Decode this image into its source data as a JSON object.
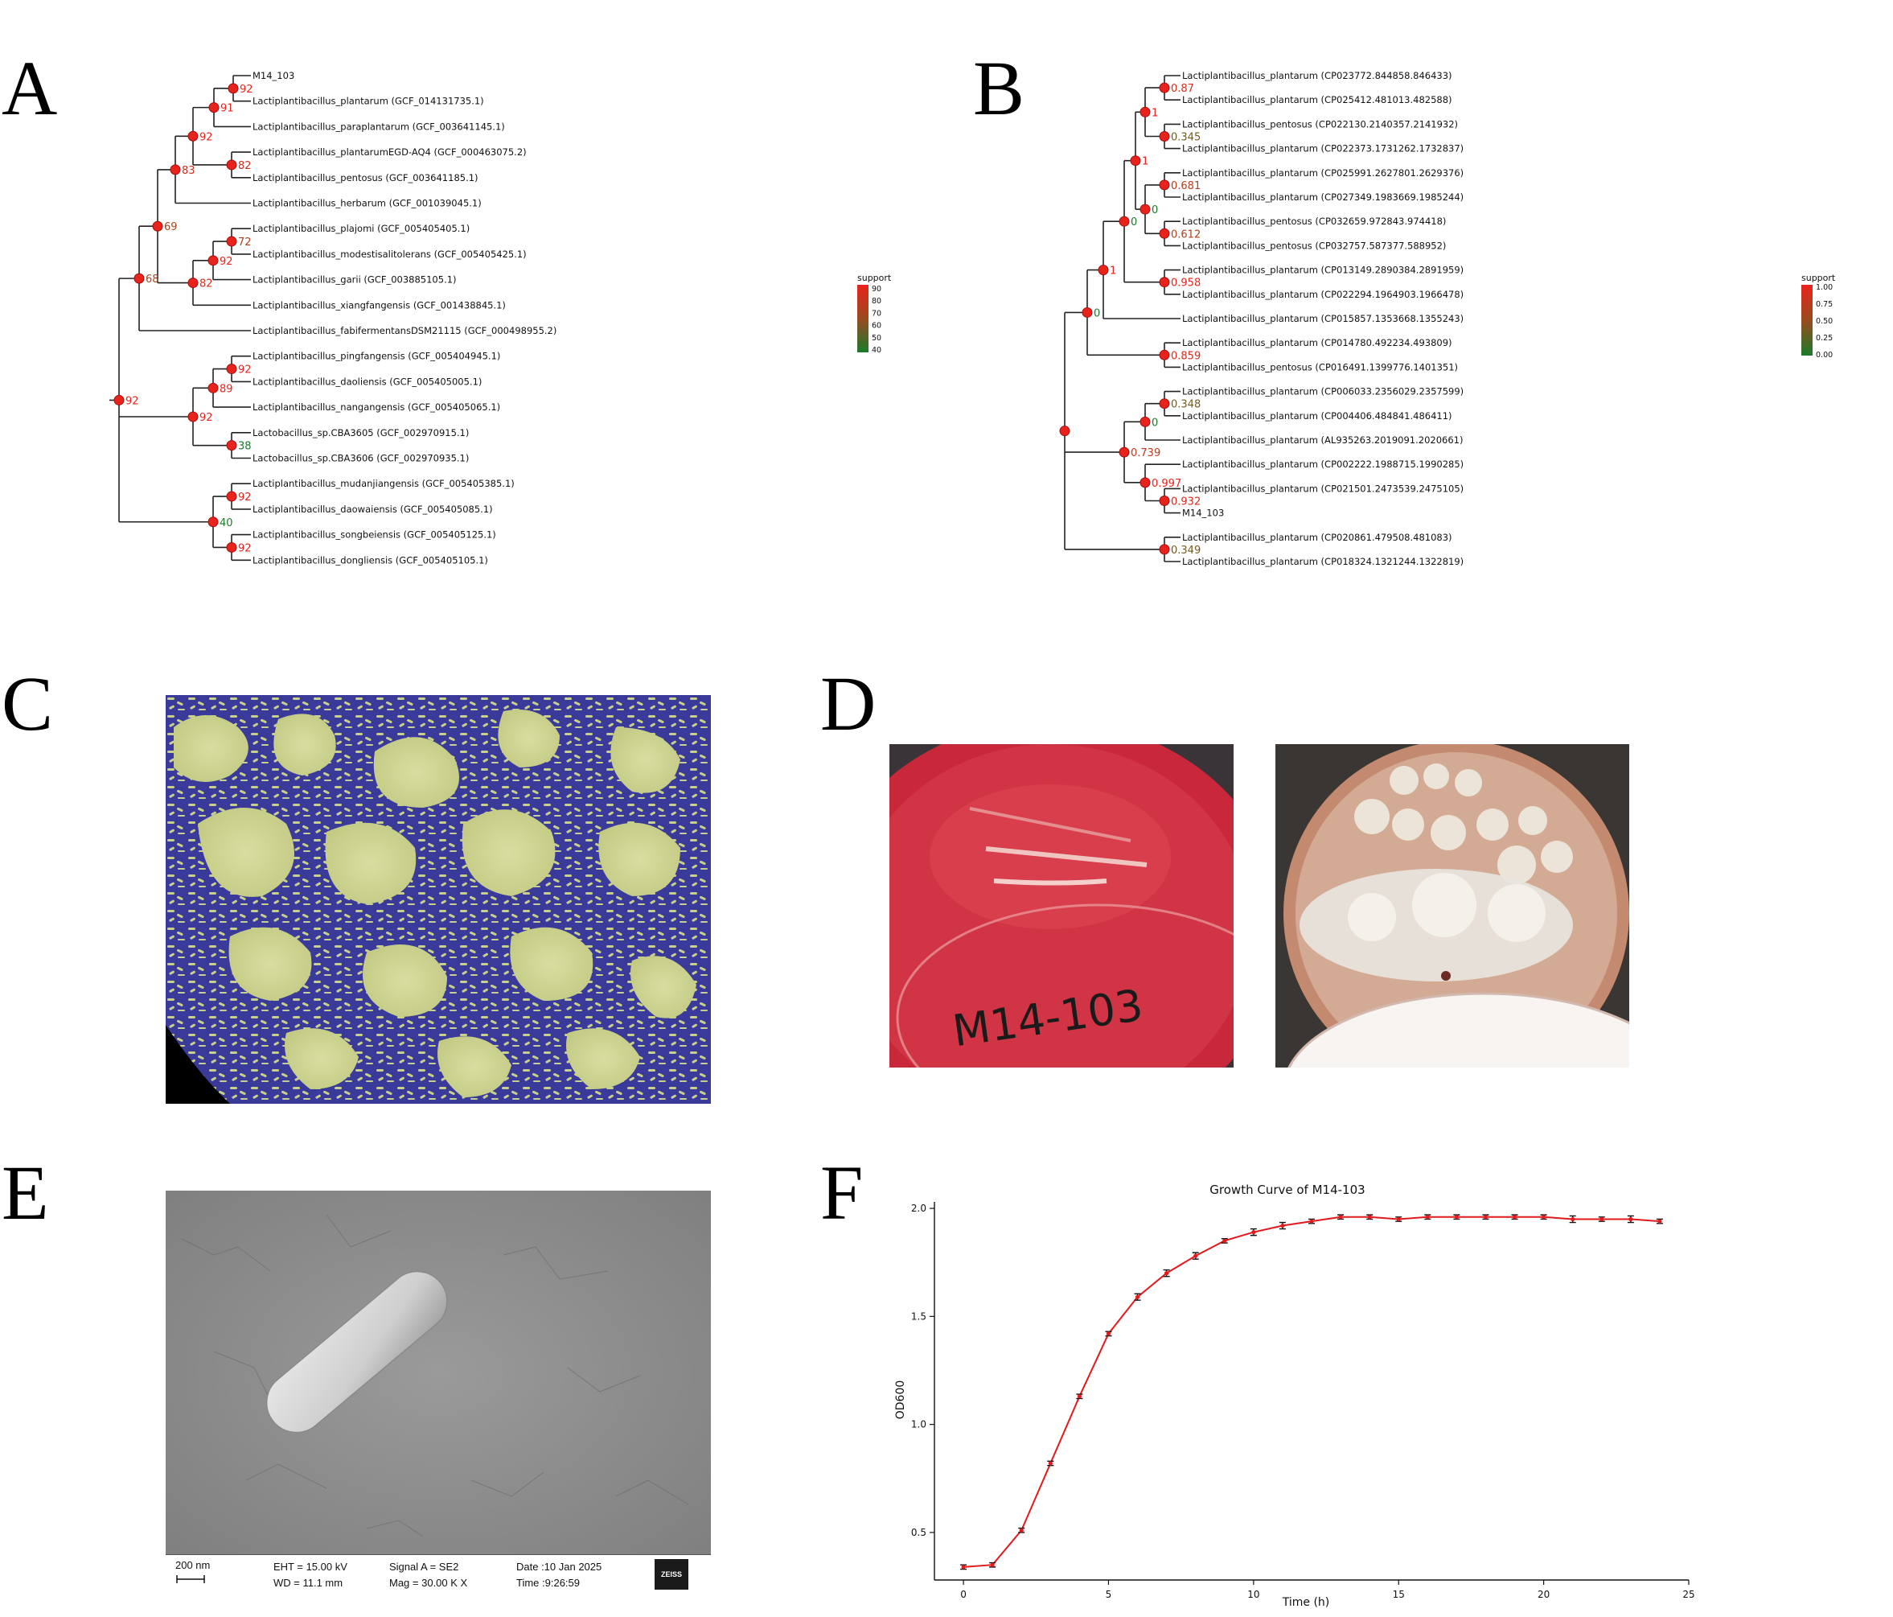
{
  "panels": {
    "a": {
      "letter": "A"
    },
    "b": {
      "letter": "B"
    },
    "c": {
      "letter": "C"
    },
    "d": {
      "letter": "D"
    },
    "e": {
      "letter": "E"
    },
    "f": {
      "letter": "F"
    }
  },
  "tree_a": {
    "tips": [
      "M14_103",
      "Lactiplantibacillus_plantarum (GCF_014131735.1)",
      "Lactiplantibacillus_paraplantarum (GCF_003641145.1)",
      "Lactiplantibacillus_plantarumEGD-AQ4 (GCF_000463075.2)",
      "Lactiplantibacillus_pentosus (GCF_003641185.1)",
      "Lactiplantibacillus_herbarum (GCF_001039045.1)",
      "Lactiplantibacillus_plajomi (GCF_005405405.1)",
      "Lactiplantibacillus_modestisalitolerans (GCF_005405425.1)",
      "Lactiplantibacillus_garii (GCF_003885105.1)",
      "Lactiplantibacillus_xiangfangensis (GCF_001438845.1)",
      "Lactiplantibacillus_fabifermentansDSM21115 (GCF_000498955.2)",
      "Lactiplantibacillus_pingfangensis (GCF_005404945.1)",
      "Lactiplantibacillus_daoliensis (GCF_005405005.1)",
      "Lactiplantibacillus_nangangensis (GCF_005405065.1)",
      "Lactobacillus_sp.CBA3605 (GCF_002970915.1)",
      "Lactobacillus_sp.CBA3606 (GCF_002970935.1)",
      "Lactiplantibacillus_mudanjiangensis (GCF_005405385.1)",
      "Lactiplantibacillus_daowaiensis (GCF_005405085.1)",
      "Lactiplantibacillus_songbeiensis (GCF_005405125.1)",
      "Lactiplantibacillus_dongliensis (GCF_005405105.1)"
    ],
    "supports": [
      "92",
      "91",
      "82",
      "92",
      "83",
      "72",
      "92",
      "82",
      "69",
      "68",
      "92",
      "89",
      "38",
      "92",
      "92",
      "92",
      "40",
      "92"
    ],
    "legend_title": "support",
    "legend_ticks": [
      "90",
      "80",
      "70",
      "60",
      "50",
      "40"
    ]
  },
  "tree_b": {
    "tips": [
      "Lactiplantibacillus_plantarum (CP023772.844858.846433)",
      "Lactiplantibacillus_plantarum (CP025412.481013.482588)",
      "Lactiplantibacillus_pentosus (CP022130.2140357.2141932)",
      "Lactiplantibacillus_plantarum (CP022373.1731262.1732837)",
      "Lactiplantibacillus_plantarum (CP025991.2627801.2629376)",
      "Lactiplantibacillus_plantarum (CP027349.1983669.1985244)",
      "Lactiplantibacillus_pentosus (CP032659.972843.974418)",
      "Lactiplantibacillus_pentosus (CP032757.587377.588952)",
      "Lactiplantibacillus_plantarum (CP013149.2890384.2891959)",
      "Lactiplantibacillus_plantarum (CP022294.1964903.1966478)",
      "Lactiplantibacillus_plantarum (CP015857.1353668.1355243)",
      "Lactiplantibacillus_plantarum (CP014780.492234.493809)",
      "Lactiplantibacillus_pentosus (CP016491.1399776.1401351)",
      "Lactiplantibacillus_plantarum (CP006033.2356029.2357599)",
      "Lactiplantibacillus_plantarum (CP004406.484841.486411)",
      "Lactiplantibacillus_plantarum (AL935263.2019091.2020661)",
      "Lactiplantibacillus_plantarum (CP002222.1988715.1990285)",
      "Lactiplantibacillus_plantarum (CP021501.2473539.2475105)",
      "M14_103",
      "Lactiplantibacillus_plantarum (CP020861.479508.481083)",
      "Lactiplantibacillus_plantarum (CP018324.1321244.1322819)"
    ],
    "supports": [
      "0.87",
      "1",
      "0.345",
      "1",
      "0.681",
      "0",
      "0.612",
      "0",
      "1",
      "0.958",
      "0",
      "0.859",
      "0.348",
      "0",
      "0.739",
      "0.997",
      "0.932",
      "0.349"
    ],
    "legend_title": "support",
    "legend_ticks": [
      "1.00",
      "0.75",
      "0.50",
      "0.25",
      "0.00"
    ]
  },
  "plates": {
    "label": "M14-103"
  },
  "sem": {
    "scale": "200 nm",
    "eht": "EHT = 15.00 kV",
    "wd": "WD = 11.1 mm",
    "signal": "Signal A = SE2",
    "mag": "Mag =   30.00 K X",
    "date": "Date :10 Jan 2025",
    "time": "Time :9:26:59",
    "logo": "ZEISS"
  },
  "chart_data": {
    "type": "line",
    "title": "Growth Curve of M14-103",
    "xlabel": "Time (h)",
    "ylabel": "OD600",
    "xlim": [
      -1,
      25
    ],
    "ylim": [
      0.28,
      2.03
    ],
    "x_ticks": [
      "0",
      "5",
      "10",
      "15",
      "20",
      "25"
    ],
    "y_ticks": [
      "0.5",
      "1.0",
      "1.5",
      "2.0"
    ],
    "x": [
      0,
      1,
      2,
      3,
      4,
      5,
      6,
      7,
      8,
      9,
      10,
      11,
      12,
      13,
      14,
      15,
      16,
      17,
      18,
      19,
      20,
      21,
      22,
      23,
      24
    ],
    "series": [
      {
        "color": "#e31a1c",
        "values": [
          0.34,
          0.35,
          0.51,
          0.82,
          1.13,
          1.42,
          1.59,
          1.7,
          1.78,
          1.85,
          1.89,
          1.92,
          1.94,
          1.96,
          1.96,
          1.95,
          1.96,
          1.96,
          1.96,
          1.96,
          1.96,
          1.95,
          1.95,
          1.95,
          1.94
        ],
        "errors": [
          0.01,
          0.01,
          0.01,
          0.01,
          0.01,
          0.01,
          0.015,
          0.015,
          0.015,
          0.01,
          0.015,
          0.015,
          0.01,
          0.01,
          0.01,
          0.01,
          0.01,
          0.01,
          0.01,
          0.01,
          0.01,
          0.015,
          0.01,
          0.015,
          0.01
        ]
      }
    ]
  }
}
